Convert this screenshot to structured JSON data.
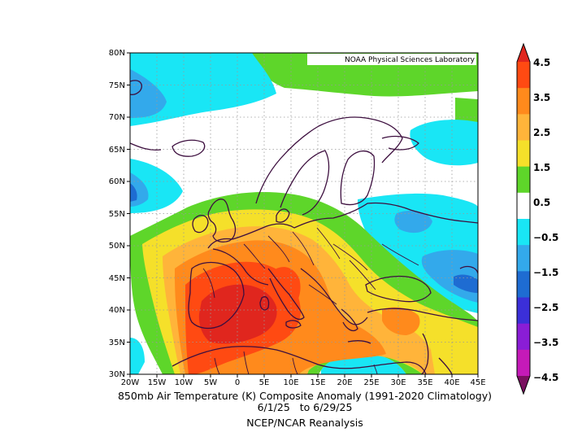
{
  "map": {
    "credit": "NOAA Physical Sciences Laboratory",
    "lat_labels": [
      "80N",
      "75N",
      "70N",
      "65N",
      "60N",
      "55N",
      "50N",
      "45N",
      "40N",
      "35N",
      "30N"
    ],
    "lon_labels": [
      "20W",
      "15W",
      "10W",
      "5W",
      "0",
      "5E",
      "10E",
      "15E",
      "20E",
      "25E",
      "30E",
      "35E",
      "40E",
      "45E"
    ],
    "colors": {
      "darkred": "#e0261e",
      "red": "#ff4a12",
      "orange": "#ff8a1c",
      "lightorange": "#ffb43a",
      "yellow": "#f5e02a",
      "green": "#5ed62a",
      "white": "#ffffff",
      "cyan": "#19e6f5",
      "lightblue": "#33a9eb",
      "blue": "#1e6cd2",
      "coast": "#3d0f3f"
    }
  },
  "colorbar": {
    "labels": [
      "4.5",
      "3.5",
      "2.5",
      "1.5",
      "0.5",
      "−0.5",
      "−1.5",
      "−2.5",
      "−3.5",
      "−4.5"
    ],
    "bins": [
      "#e0261e",
      "#ff4a12",
      "#ff8a1c",
      "#ffb43a",
      "#f5e02a",
      "#5ed62a",
      "#ffffff",
      "#19e6f5",
      "#33a9eb",
      "#1e6cd2",
      "#3b2fd8",
      "#8a1dd6",
      "#c51ab8",
      "#7a1060"
    ]
  },
  "caption": {
    "line1": "850mb Air Temperature (K) Composite Anomaly (1991-2020 Climatology)",
    "line2": "6/1/25   to 6/29/25",
    "line3": "NCEP/NCAR Reanalysis"
  }
}
